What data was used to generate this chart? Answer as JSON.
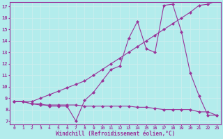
{
  "xlabel": "Windchill (Refroidissement éolien,°C)",
  "bg_color": "#b3ecec",
  "line_color": "#993399",
  "grid_color": "#cceeee",
  "xlim_min": -0.5,
  "xlim_max": 23.5,
  "ylim_min": 6.7,
  "ylim_max": 17.4,
  "xticks": [
    0,
    1,
    2,
    3,
    4,
    5,
    6,
    7,
    8,
    9,
    10,
    11,
    12,
    13,
    14,
    15,
    16,
    17,
    18,
    19,
    20,
    21,
    22,
    23
  ],
  "yticks": [
    7,
    8,
    9,
    10,
    11,
    12,
    13,
    14,
    15,
    16,
    17
  ],
  "line1_x": [
    0,
    1,
    2,
    3,
    4,
    5,
    6,
    7,
    8,
    9,
    10,
    11,
    12,
    13,
    14,
    15,
    16,
    17,
    18,
    19,
    20,
    21,
    22,
    23
  ],
  "line1_y": [
    8.7,
    8.7,
    8.5,
    8.4,
    8.4,
    8.4,
    8.4,
    8.4,
    8.3,
    8.3,
    8.3,
    8.3,
    8.3,
    8.3,
    8.2,
    8.2,
    8.1,
    8.0,
    8.0,
    8.0,
    8.0,
    7.8,
    7.8,
    7.5
  ],
  "line2_x": [
    0,
    1,
    2,
    3,
    4,
    5,
    6,
    7,
    8,
    9,
    10,
    11,
    12,
    13,
    14,
    15,
    16,
    17,
    18,
    19,
    20,
    21,
    22,
    23
  ],
  "line2_y": [
    8.7,
    8.7,
    8.5,
    8.5,
    8.3,
    8.3,
    8.3,
    7.0,
    8.8,
    9.5,
    10.5,
    11.5,
    11.8,
    14.2,
    15.7,
    13.3,
    13.0,
    17.1,
    17.2,
    14.8,
    11.2,
    9.2,
    7.5,
    7.5
  ],
  "line3_x": [
    0,
    2,
    3,
    4,
    5,
    6,
    7,
    8,
    9,
    10,
    11,
    12,
    13,
    14,
    15,
    16,
    17,
    18,
    19,
    20,
    21,
    22,
    23
  ],
  "line3_y": [
    8.7,
    8.7,
    9.0,
    9.3,
    9.6,
    9.9,
    10.2,
    10.5,
    11.0,
    11.5,
    12.0,
    12.5,
    13.0,
    13.5,
    14.0,
    14.5,
    15.0,
    15.5,
    16.0,
    16.5,
    17.1,
    17.2,
    17.5
  ]
}
